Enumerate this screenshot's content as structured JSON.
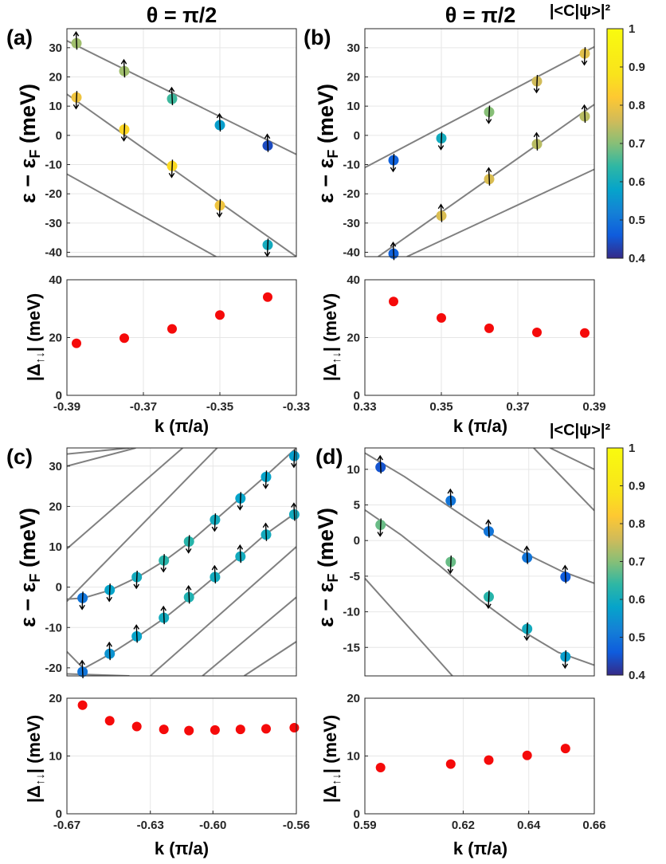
{
  "colorbars": [
    {
      "title": "|<C|ψ>|²",
      "ticks": [
        "1",
        "0.9",
        "0.8",
        "0.7",
        "0.6",
        "0.5",
        "0.4"
      ],
      "range": [
        0.4,
        1
      ]
    },
    {
      "title": "|<C|ψ>|²",
      "ticks": [
        "1",
        "0.9",
        "0.8",
        "0.7",
        "0.6",
        "0.5",
        "0.4"
      ],
      "range": [
        0.4,
        1
      ]
    }
  ],
  "chart_data": [
    {
      "panel": "(a)",
      "title": "θ = π/2",
      "top": {
        "type": "scatter",
        "ylabel": "ε − ε_F (meV)",
        "xlim": [
          -0.39,
          -0.33
        ],
        "ylim": [
          -41.5,
          36.5
        ],
        "yticks": [
          "30",
          "20",
          "10",
          "0",
          "-10",
          "-20",
          "-30",
          "-40"
        ],
        "bands": [
          {
            "x": [
              -0.391,
              -0.33
            ],
            "y": [
              33.0,
              -6.5
            ]
          },
          {
            "x": [
              -0.391,
              -0.33
            ],
            "y": [
              15.0,
              -41.5
            ]
          },
          {
            "x": [
              -0.391,
              -0.351
            ],
            "y": [
              -12.5,
              -41.5
            ]
          }
        ],
        "points": [
          {
            "k": -0.3875,
            "e": 31.5,
            "w": 0.72,
            "spin": "up"
          },
          {
            "k": -0.375,
            "e": 22.0,
            "w": 0.72,
            "spin": "up"
          },
          {
            "k": -0.3625,
            "e": 12.5,
            "w": 0.65,
            "spin": "up"
          },
          {
            "k": -0.35,
            "e": 3.5,
            "w": 0.57,
            "spin": "up"
          },
          {
            "k": -0.3375,
            "e": -3.5,
            "w": 0.44,
            "spin": "up"
          },
          {
            "k": -0.3875,
            "e": 13.0,
            "w": 0.8,
            "spin": "down"
          },
          {
            "k": -0.375,
            "e": 2.0,
            "w": 0.85,
            "spin": "down"
          },
          {
            "k": -0.3625,
            "e": -10.5,
            "w": 0.86,
            "spin": "down"
          },
          {
            "k": -0.35,
            "e": -24.0,
            "w": 0.8,
            "spin": "down"
          },
          {
            "k": -0.3375,
            "e": -37.5,
            "w": 0.6,
            "spin": "down"
          }
        ]
      },
      "bottom": {
        "type": "scatter",
        "ylabel": "|Δ↑↓| (meV)",
        "xlabel": "k (π/a)",
        "xlim": [
          -0.39,
          -0.33
        ],
        "ylim": [
          0,
          40
        ],
        "xticks": [
          "-0.39",
          "-0.37",
          "-0.35",
          "-0.33"
        ],
        "yticks": [
          "40",
          "20",
          "0"
        ],
        "x": [
          -0.3875,
          -0.375,
          -0.3625,
          -0.35,
          -0.3375
        ],
        "y": [
          18.0,
          19.8,
          23.0,
          27.8,
          34.0
        ]
      }
    },
    {
      "panel": "(b)",
      "title": "θ = π/2",
      "top": {
        "type": "scatter",
        "ylabel": "ε − ε_F (meV)",
        "xlim": [
          0.33,
          0.39
        ],
        "ylim": [
          -41.5,
          36.5
        ],
        "yticks": [
          "30",
          "20",
          "10",
          "0",
          "-10",
          "-20",
          "-30",
          "-40"
        ],
        "bands": [
          {
            "x": [
              0.33,
              0.391
            ],
            "y": [
              -11.0,
              31.0
            ]
          },
          {
            "x": [
              0.3335,
              0.391
            ],
            "y": [
              -41.5,
              11.5
            ]
          },
          {
            "x": [
              0.341,
              0.391
            ],
            "y": [
              -41.5,
              -11.0
            ]
          }
        ],
        "points": [
          {
            "k": 0.3375,
            "e": -8.5,
            "w": 0.47,
            "spin": "down"
          },
          {
            "k": 0.35,
            "e": -1.0,
            "w": 0.6,
            "spin": "down"
          },
          {
            "k": 0.3625,
            "e": 8.0,
            "w": 0.7,
            "spin": "down"
          },
          {
            "k": 0.375,
            "e": 18.5,
            "w": 0.76,
            "spin": "down"
          },
          {
            "k": 0.3875,
            "e": 28.0,
            "w": 0.78,
            "spin": "down"
          },
          {
            "k": 0.3375,
            "e": -40.5,
            "w": 0.47,
            "spin": "up"
          },
          {
            "k": 0.35,
            "e": -27.5,
            "w": 0.77,
            "spin": "up"
          },
          {
            "k": 0.3625,
            "e": -15.0,
            "w": 0.77,
            "spin": "up"
          },
          {
            "k": 0.375,
            "e": -3.0,
            "w": 0.74,
            "spin": "up"
          },
          {
            "k": 0.3875,
            "e": 6.5,
            "w": 0.74,
            "spin": "up"
          }
        ]
      },
      "bottom": {
        "type": "scatter",
        "ylabel": "|Δ↑↓| (meV)",
        "xlabel": "k (π/a)",
        "xlim": [
          0.33,
          0.39
        ],
        "ylim": [
          0,
          40
        ],
        "xticks": [
          "0.33",
          "0.35",
          "0.37",
          "0.39"
        ],
        "yticks": [
          "40",
          "20",
          "0"
        ],
        "x": [
          0.3375,
          0.35,
          0.3625,
          0.375,
          0.3875
        ],
        "y": [
          32.5,
          26.8,
          23.2,
          21.8,
          21.6
        ]
      }
    },
    {
      "panel": "(c)",
      "title": "",
      "top": {
        "type": "scatter",
        "ylabel": "ε − ε_F (meV)",
        "xlim": [
          -0.67,
          -0.56
        ],
        "ylim": [
          -22,
          34.5
        ],
        "yticks": [
          "30",
          "20",
          "10",
          "0",
          "-10",
          "-20"
        ],
        "bands": [
          {
            "x": [
              -0.67,
              -0.64
            ],
            "y": [
              33.0,
              34.5
            ]
          },
          {
            "x": [
              -0.67,
              -0.637
            ],
            "y": [
              30.0,
              34.5
            ]
          },
          {
            "x": [
              -0.67,
              -0.6145
            ],
            "y": [
              9.5,
              34.5
            ]
          },
          {
            "x": [
              -0.67,
              -0.598
            ],
            "y": [
              -3.5,
              34.5
            ]
          },
          {
            "x": [
              -0.67,
              -0.662,
              -0.649,
              -0.636,
              -0.623,
              -0.611,
              -0.599,
              -0.587,
              -0.575,
              -0.56
            ],
            "y": [
              -3.0,
              -2.7,
              -0.7,
              2.5,
              6.6,
              11.2,
              16.6,
              22.0,
              27.4,
              34.5
            ]
          },
          {
            "x": [
              -0.67,
              -0.662,
              -0.649,
              -0.636,
              -0.623,
              -0.611,
              -0.599,
              -0.587,
              -0.575,
              -0.562,
              -0.56
            ],
            "y": [
              -16.0,
              -20.2,
              -16.5,
              -12.2,
              -7.6,
              -2.6,
              2.6,
              7.6,
              13.0,
              17.8,
              18.5
            ]
          },
          {
            "x": [
              -0.67,
              -0.64
            ],
            "y": [
              -21.5,
              -22
            ]
          },
          {
            "x": [
              -0.63,
              -0.56
            ],
            "y": [
              -22,
              10.0
            ]
          },
          {
            "x": [
              -0.605,
              -0.56
            ],
            "y": [
              -22,
              -2.5
            ]
          },
          {
            "x": [
              -0.585,
              -0.56
            ],
            "y": [
              -22,
              -13.5
            ]
          }
        ],
        "points": [
          {
            "k": -0.6625,
            "e": -2.7,
            "w": 0.5,
            "spin": "down"
          },
          {
            "k": -0.6495,
            "e": -0.7,
            "w": 0.58,
            "spin": "down"
          },
          {
            "k": -0.6365,
            "e": 2.5,
            "w": 0.6,
            "spin": "down"
          },
          {
            "k": -0.6235,
            "e": 6.6,
            "w": 0.63,
            "spin": "down"
          },
          {
            "k": -0.6115,
            "e": 11.3,
            "w": 0.63,
            "spin": "down"
          },
          {
            "k": -0.599,
            "e": 16.7,
            "w": 0.6,
            "spin": "down"
          },
          {
            "k": -0.5868,
            "e": 22.0,
            "w": 0.58,
            "spin": "down"
          },
          {
            "k": -0.5745,
            "e": 27.3,
            "w": 0.58,
            "spin": "down"
          },
          {
            "k": -0.561,
            "e": 32.5,
            "w": 0.57,
            "spin": "down"
          },
          {
            "k": -0.6625,
            "e": -21.0,
            "w": 0.5,
            "spin": "up"
          },
          {
            "k": -0.6495,
            "e": -16.5,
            "w": 0.55,
            "spin": "up"
          },
          {
            "k": -0.6365,
            "e": -12.2,
            "w": 0.58,
            "spin": "up"
          },
          {
            "k": -0.6235,
            "e": -7.6,
            "w": 0.6,
            "spin": "up"
          },
          {
            "k": -0.6115,
            "e": -2.5,
            "w": 0.62,
            "spin": "up"
          },
          {
            "k": -0.599,
            "e": 2.5,
            "w": 0.6,
            "spin": "up"
          },
          {
            "k": -0.5868,
            "e": 7.6,
            "w": 0.6,
            "spin": "up"
          },
          {
            "k": -0.5745,
            "e": 13.0,
            "w": 0.6,
            "spin": "up"
          },
          {
            "k": -0.561,
            "e": 18.0,
            "w": 0.6,
            "spin": "up"
          }
        ]
      },
      "bottom": {
        "type": "scatter",
        "ylabel": "|Δ↑↓| (meV)",
        "xlabel": "k (π/a)",
        "xlim": [
          -0.67,
          -0.56
        ],
        "ylim": [
          0,
          20
        ],
        "xticks": [
          "-0.67",
          "-0.63",
          "-0.60",
          "-0.56"
        ],
        "yticks": [
          "20",
          "10",
          "0"
        ],
        "x": [
          -0.6625,
          -0.6495,
          -0.6365,
          -0.6235,
          -0.6115,
          -0.599,
          -0.5868,
          -0.5745,
          -0.561
        ],
        "y": [
          18.8,
          16.1,
          15.1,
          14.6,
          14.4,
          14.5,
          14.6,
          14.7,
          14.9
        ]
      }
    },
    {
      "panel": "(d)",
      "title": "",
      "top": {
        "type": "scatter",
        "ylabel": "ε − ε_F (meV)",
        "xlim": [
          0.59,
          0.66
        ],
        "ylim": [
          -19,
          13
        ],
        "yticks": [
          "10",
          "5",
          "0",
          "-5",
          "-10",
          "-15"
        ],
        "bands": [
          {
            "x": [
              0.59,
              0.602,
              0.614,
              0.626,
              0.638,
              0.65,
              0.66
            ],
            "y": [
              12.3,
              9.0,
              5.3,
              1.6,
              -1.6,
              -4.3,
              -6.0
            ]
          },
          {
            "x": [
              0.59,
              0.601,
              0.613,
              0.625,
              0.637,
              0.649,
              0.66
            ],
            "y": [
              4.3,
              0.8,
              -3.6,
              -8.3,
              -12.4,
              -15.7,
              -17.5
            ]
          },
          {
            "x": [
              0.59,
              0.6167
            ],
            "y": [
              -5.3,
              -19
            ]
          },
          {
            "x": [
              0.6415,
              0.66
            ],
            "y": [
              13,
              4.2
            ]
          },
          {
            "x": [
              0.6465,
              0.66
            ],
            "y": [
              13,
              10.0
            ]
          }
        ],
        "points": [
          {
            "k": 0.5948,
            "e": 10.3,
            "w": 0.45,
            "spin": "up"
          },
          {
            "k": 0.6162,
            "e": 5.6,
            "w": 0.5,
            "spin": "up"
          },
          {
            "k": 0.6278,
            "e": 1.3,
            "w": 0.5,
            "spin": "up"
          },
          {
            "k": 0.6395,
            "e": -2.4,
            "w": 0.5,
            "spin": "up"
          },
          {
            "k": 0.6512,
            "e": -5.1,
            "w": 0.46,
            "spin": "up"
          },
          {
            "k": 0.5948,
            "e": 2.2,
            "w": 0.68,
            "spin": "down"
          },
          {
            "k": 0.6162,
            "e": -3.0,
            "w": 0.68,
            "spin": "down"
          },
          {
            "k": 0.6278,
            "e": -7.9,
            "w": 0.63,
            "spin": "down"
          },
          {
            "k": 0.6395,
            "e": -12.4,
            "w": 0.6,
            "spin": "down"
          },
          {
            "k": 0.6512,
            "e": -16.3,
            "w": 0.57,
            "spin": "down"
          }
        ]
      },
      "bottom": {
        "type": "scatter",
        "ylabel": "|Δ↑↓| (meV)",
        "xlabel": "k (π/a)",
        "xlim": [
          0.59,
          0.66
        ],
        "ylim": [
          0,
          20
        ],
        "xticks": [
          "0.59",
          "0.62",
          "0.64",
          "0.66"
        ],
        "yticks": [
          "20",
          "10",
          "0"
        ],
        "x": [
          0.5948,
          0.6162,
          0.6278,
          0.6395,
          0.6512
        ],
        "y": [
          8.0,
          8.6,
          9.3,
          10.1,
          11.3
        ]
      }
    }
  ]
}
